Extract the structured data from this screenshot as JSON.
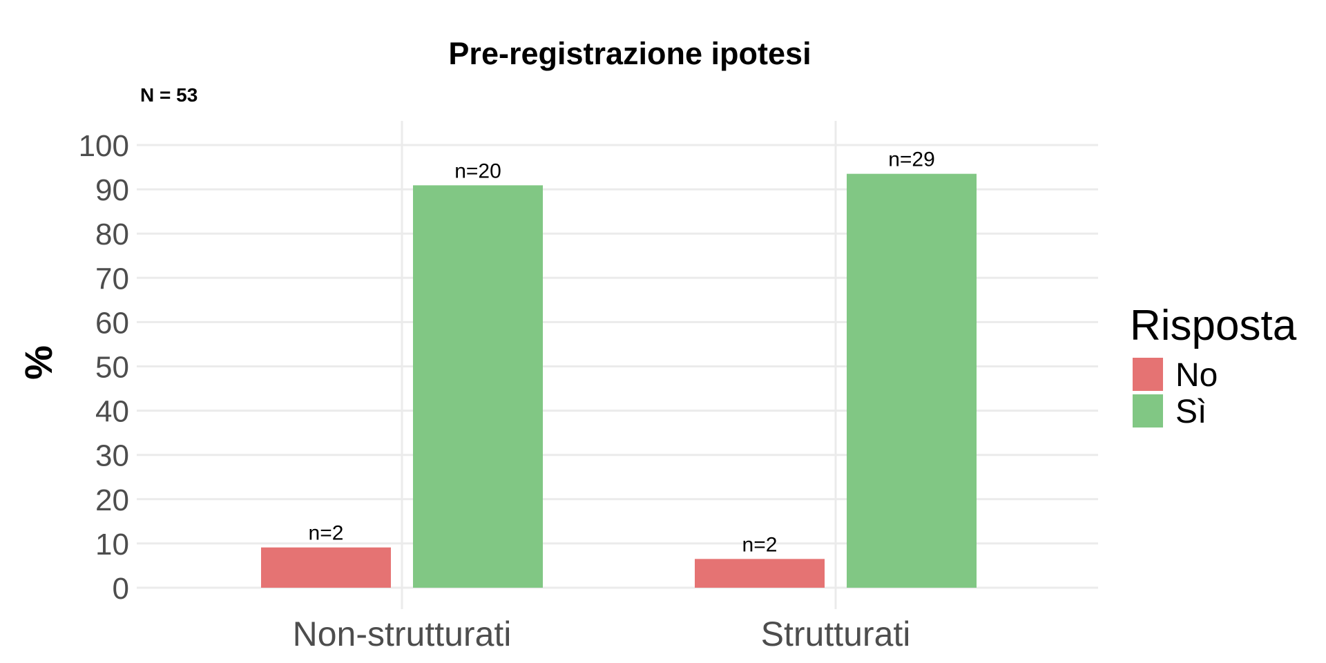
{
  "chart_data": {
    "type": "bar",
    "title": "Pre-registrazione ipotesi",
    "subtitle": "N = 53",
    "xlabel": "",
    "ylabel": "%",
    "ylim": [
      0,
      100
    ],
    "yticks": [
      "0",
      "10",
      "20",
      "30",
      "40",
      "50",
      "60",
      "70",
      "80",
      "90",
      "100"
    ],
    "categories": [
      "Non-strutturati",
      "Strutturati"
    ],
    "series": [
      {
        "name": "No",
        "color": "#e57373",
        "values": [
          9.1,
          6.5
        ],
        "labels": [
          "n=2",
          "n=2"
        ]
      },
      {
        "name": "Sì",
        "color": "#81c784",
        "values": [
          90.9,
          93.5
        ],
        "labels": [
          "n=20",
          "n=29"
        ]
      }
    ],
    "legend": {
      "title": "Risposta",
      "position": "right"
    },
    "grid": true
  }
}
